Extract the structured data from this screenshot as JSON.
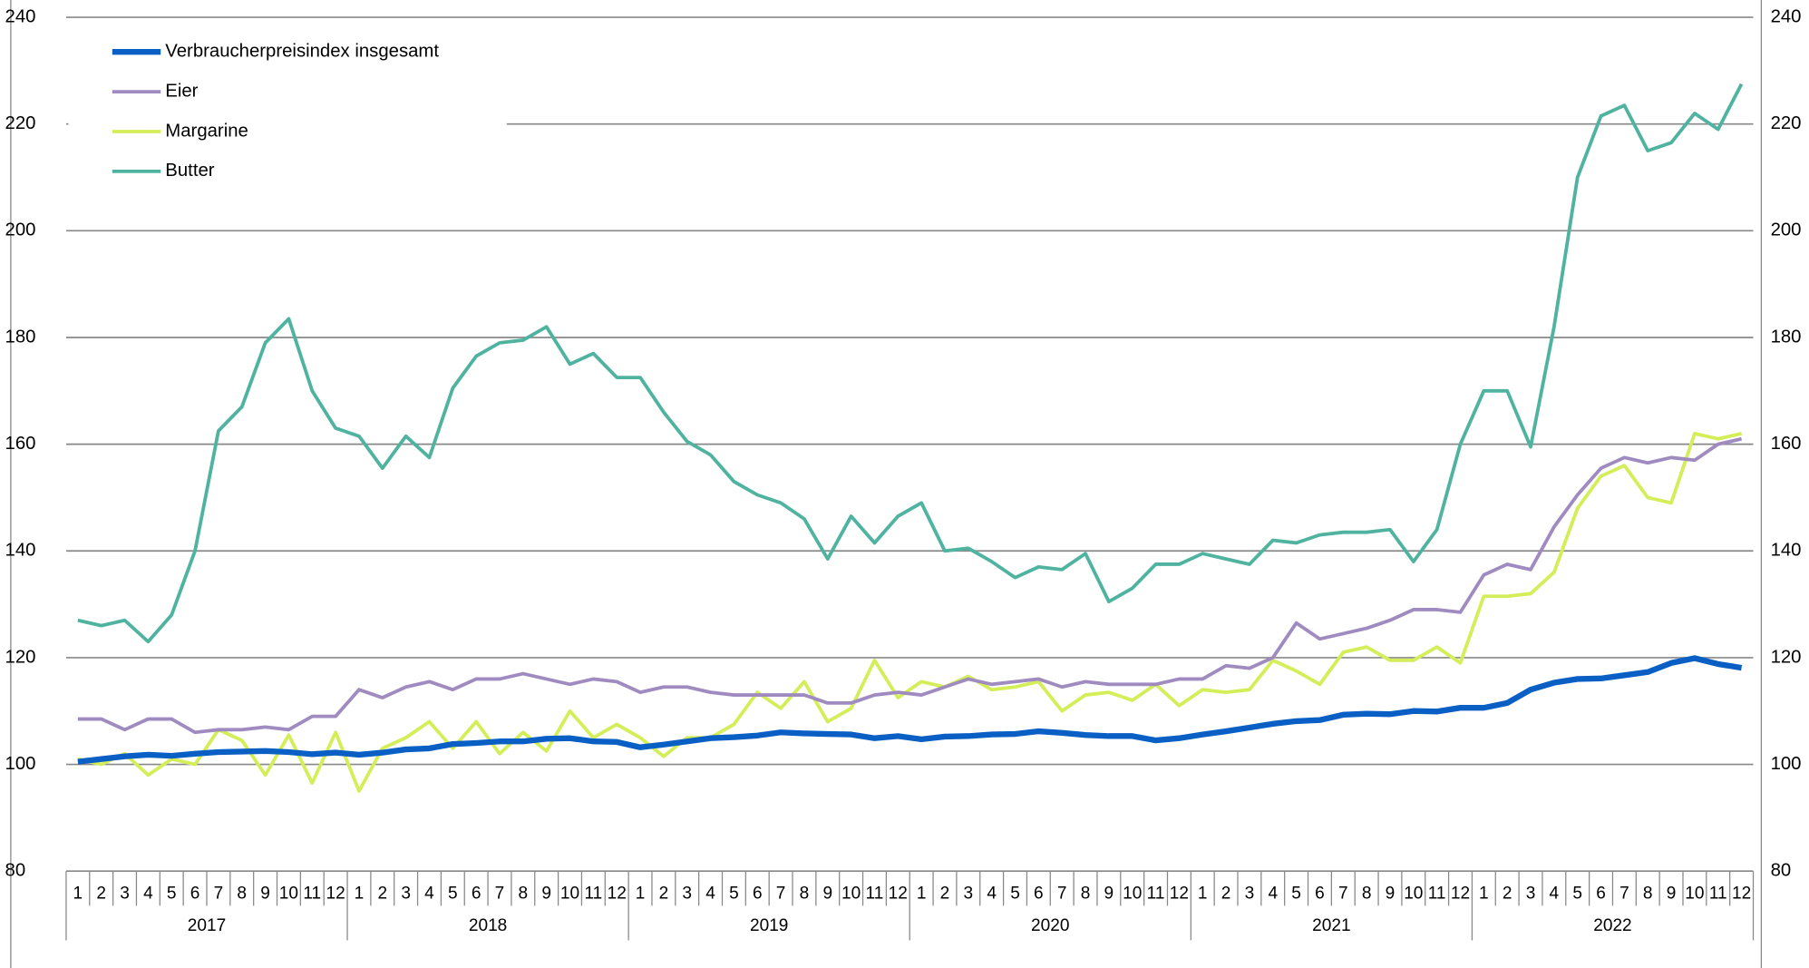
{
  "chart_data": {
    "type": "line",
    "categories": [
      "1",
      "2",
      "3",
      "4",
      "5",
      "6",
      "7",
      "8",
      "9",
      "10",
      "11",
      "12",
      "1",
      "2",
      "3",
      "4",
      "5",
      "6",
      "7",
      "8",
      "9",
      "10",
      "11",
      "12",
      "1",
      "2",
      "3",
      "4",
      "5",
      "6",
      "7",
      "8",
      "9",
      "10",
      "11",
      "12",
      "1",
      "2",
      "3",
      "4",
      "5",
      "6",
      "7",
      "8",
      "9",
      "10",
      "11",
      "12",
      "1",
      "2",
      "3",
      "4",
      "5",
      "6",
      "7",
      "8",
      "9",
      "10",
      "11",
      "12",
      "1",
      "2",
      "3",
      "4",
      "5",
      "6",
      "7",
      "8",
      "9",
      "10",
      "11",
      "12"
    ],
    "years": [
      "2017",
      "2018",
      "2019",
      "2020",
      "2021",
      "2022"
    ],
    "ylim": [
      80,
      240
    ],
    "yticks": [
      80,
      100,
      120,
      140,
      160,
      180,
      200,
      220,
      240
    ],
    "grid": true,
    "legend": "upper left",
    "series": [
      {
        "name": "Verbraucherpreisindex insgesamt",
        "color": "#0a5fc4",
        "values": [
          100.5,
          101,
          101.5,
          101.8,
          101.6,
          102,
          102.3,
          102.4,
          102.5,
          102.3,
          101.9,
          102.2,
          101.8,
          102.2,
          102.8,
          103,
          103.8,
          104,
          104.3,
          104.3,
          104.8,
          104.9,
          104.3,
          104.2,
          103.2,
          103.7,
          104.3,
          104.9,
          105.1,
          105.4,
          106,
          105.8,
          105.7,
          105.6,
          104.9,
          105.3,
          104.7,
          105.2,
          105.3,
          105.6,
          105.7,
          106.2,
          105.9,
          105.5,
          105.3,
          105.3,
          104.5,
          104.9,
          105.6,
          106.2,
          106.9,
          107.6,
          108.1,
          108.3,
          109.3,
          109.5,
          109.4,
          110,
          109.9,
          110.6,
          110.6,
          111.5,
          114,
          115.3,
          116,
          116.1,
          116.7,
          117.3,
          119,
          119.9,
          118.8,
          118.1
        ]
      },
      {
        "name": "Eier",
        "color": "#9f8bc0",
        "values": [
          108.5,
          108.5,
          106.5,
          108.5,
          108.5,
          106,
          106.5,
          106.5,
          107,
          106.5,
          109,
          109,
          114,
          112.5,
          114.5,
          115.5,
          114,
          116,
          116,
          117,
          116,
          115,
          116,
          115.5,
          113.5,
          114.5,
          114.5,
          113.5,
          113,
          113,
          113,
          113,
          111.5,
          111.5,
          113,
          113.5,
          113,
          114.5,
          116,
          115,
          115.5,
          116,
          114.5,
          115.5,
          115,
          115,
          115,
          116,
          116,
          118.5,
          118,
          120,
          126.5,
          123.5,
          124.5,
          125.5,
          127,
          129,
          129,
          128.5,
          135.5,
          137.5,
          136.5,
          144.5,
          150.5,
          155.5,
          157.5,
          156.5,
          157.5,
          157,
          160,
          161
        ]
      },
      {
        "name": "Margarine",
        "color": "#d4ee5a",
        "values": [
          101,
          100,
          102,
          98,
          101,
          100,
          106.5,
          104.5,
          98,
          105.5,
          96.5,
          106,
          95,
          103,
          105,
          108,
          103,
          108,
          102,
          106,
          102.5,
          110,
          105,
          107.5,
          105,
          101.5,
          105,
          105,
          107.5,
          113.5,
          110.5,
          115.5,
          108,
          110.5,
          119.5,
          112.5,
          115.5,
          114.5,
          116.5,
          114,
          114.5,
          115.5,
          110,
          113,
          113.5,
          112,
          115,
          111,
          114,
          113.5,
          114,
          119.5,
          117.5,
          115,
          121,
          122,
          119.5,
          119.5,
          122,
          119,
          131.5,
          131.5,
          132,
          136,
          148,
          154,
          156,
          150,
          149,
          162,
          161,
          162
        ]
      },
      {
        "name": "Butter",
        "color": "#4fb3a0",
        "values": [
          127,
          126,
          127,
          123,
          128,
          140,
          162.5,
          167,
          179,
          183.5,
          170,
          163,
          161.5,
          155.5,
          161.5,
          157.5,
          170.5,
          176.5,
          179,
          179.5,
          182,
          175,
          177,
          172.5,
          172.5,
          166,
          160.5,
          158,
          153,
          150.5,
          149,
          146,
          138.5,
          146.5,
          141.5,
          146.5,
          149,
          140,
          140.5,
          138,
          135,
          137,
          136.5,
          139.5,
          130.5,
          133,
          137.5,
          137.5,
          139.5,
          138.5,
          137.5,
          142,
          141.5,
          143,
          143.5,
          143.5,
          144,
          138,
          144,
          160,
          170,
          170,
          159.5,
          182,
          210,
          221.5,
          223.5,
          215,
          216.5,
          222,
          219,
          227.5
        ]
      }
    ]
  }
}
